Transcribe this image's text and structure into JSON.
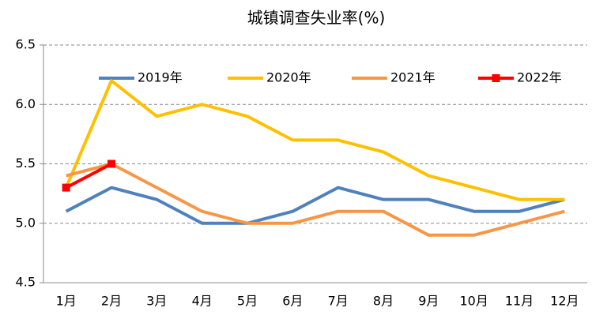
{
  "chart_data": {
    "type": "line",
    "title": "城镇调查失业率(%)",
    "categories": [
      "1月",
      "2月",
      "3月",
      "4月",
      "5月",
      "6月",
      "7月",
      "8月",
      "9月",
      "10月",
      "11月",
      "12月"
    ],
    "series": [
      {
        "name": "2019年",
        "color": "#4f81bd",
        "values": [
          5.1,
          5.3,
          5.2,
          5.0,
          5.0,
          5.1,
          5.3,
          5.2,
          5.2,
          5.1,
          5.1,
          5.2
        ]
      },
      {
        "name": "2020年",
        "color": "#ffc000",
        "values": [
          5.3,
          6.2,
          5.9,
          6.0,
          5.9,
          5.7,
          5.7,
          5.6,
          5.4,
          5.3,
          5.2,
          5.2
        ]
      },
      {
        "name": "2021年",
        "color": "#f79646",
        "values": [
          5.4,
          5.5,
          5.3,
          5.1,
          5.0,
          5.0,
          5.1,
          5.1,
          4.9,
          4.9,
          5.0,
          5.1
        ]
      },
      {
        "name": "2022年",
        "color": "#ff0000",
        "marker": "square",
        "values": [
          5.3,
          5.5,
          null,
          null,
          null,
          null,
          null,
          null,
          null,
          null,
          null,
          null
        ]
      }
    ],
    "ylim": [
      4.5,
      6.5
    ],
    "yticks": [
      4.5,
      {
        "value": 5,
        "label": "5.0"
      },
      5.5,
      {
        "value": 6,
        "label": "6.0"
      },
      6.5
    ],
    "grid": true,
    "legend": "top"
  }
}
